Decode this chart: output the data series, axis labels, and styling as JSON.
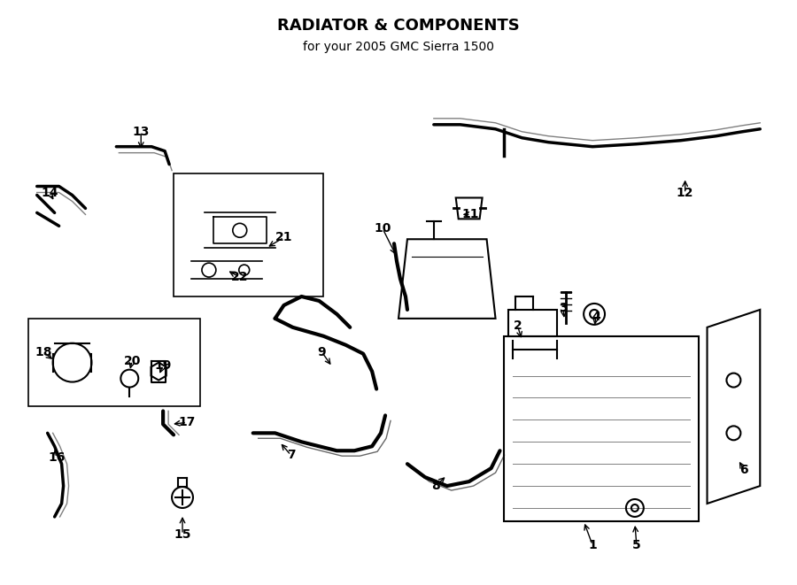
{
  "title": "RADIATOR & COMPONENTS",
  "subtitle": "for your 2005 GMC Sierra 1500",
  "bg_color": "#ffffff",
  "line_color": "#000000",
  "label_color": "#000000",
  "fig_width": 9.0,
  "fig_height": 6.61,
  "dpi": 100
}
